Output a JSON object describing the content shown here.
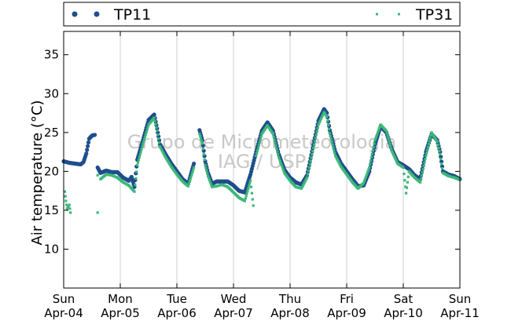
{
  "watermark": [
    "Grupo de Micrometeorologia",
    "IAG / USP"
  ],
  "chart_data": {
    "type": "scatter",
    "ylabel": "Air temperature (°C)",
    "xlabel": "",
    "ylim": [
      5,
      38
    ],
    "yticks": [
      10,
      15,
      20,
      25,
      30,
      35
    ],
    "xlim": [
      0,
      7
    ],
    "xticks": [
      {
        "x": 0,
        "day": "Sun",
        "date": "Apr-04"
      },
      {
        "x": 1,
        "day": "Mon",
        "date": "Apr-05"
      },
      {
        "x": 2,
        "day": "Tue",
        "date": "Apr-06"
      },
      {
        "x": 3,
        "day": "Wed",
        "date": "Apr-07"
      },
      {
        "x": 4,
        "day": "Thu",
        "date": "Apr-08"
      },
      {
        "x": 5,
        "day": "Fri",
        "date": "Apr-09"
      },
      {
        "x": 6,
        "day": "Sat",
        "date": "Apr-10"
      },
      {
        "x": 7,
        "day": "Sun",
        "date": "Apr-11"
      }
    ],
    "grid": "vertical",
    "legend_placement": "top, outside plot",
    "series": [
      {
        "name": "TP11",
        "color": "#1f4e8c",
        "marker": "circle",
        "points": [
          [
            0.0,
            21.3
          ],
          [
            0.1,
            21.1
          ],
          [
            0.2,
            21.0
          ],
          [
            0.3,
            20.9
          ],
          [
            0.35,
            21.2
          ],
          [
            0.4,
            22.3
          ],
          [
            0.45,
            24.2
          ],
          [
            0.5,
            24.6
          ],
          [
            0.55,
            24.7
          ],
          [
            0.6,
            20.5
          ],
          [
            0.65,
            19.8
          ],
          [
            0.75,
            20.1
          ],
          [
            0.85,
            19.9
          ],
          [
            0.95,
            19.9
          ],
          [
            1.05,
            19.2
          ],
          [
            1.15,
            18.8
          ],
          [
            1.2,
            19.3
          ],
          [
            1.25,
            18.0
          ],
          [
            1.3,
            21.5
          ],
          [
            1.4,
            24.0
          ],
          [
            1.5,
            26.6
          ],
          [
            1.6,
            27.3
          ],
          [
            1.65,
            25.5
          ],
          [
            1.7,
            23.5
          ],
          [
            1.8,
            22.2
          ],
          [
            1.9,
            21.0
          ],
          [
            2.0,
            20.0
          ],
          [
            2.1,
            19.0
          ],
          [
            2.2,
            18.4
          ],
          [
            2.3,
            21.0
          ],
          [
            2.4,
            25.3
          ],
          [
            2.45,
            24.0
          ],
          [
            2.5,
            21.3
          ],
          [
            2.55,
            19.8
          ],
          [
            2.62,
            18.4
          ],
          [
            2.7,
            18.7
          ],
          [
            2.8,
            18.7
          ],
          [
            2.9,
            18.7
          ],
          [
            3.0,
            18.2
          ],
          [
            3.1,
            17.5
          ],
          [
            3.2,
            17.3
          ],
          [
            3.3,
            19.6
          ],
          [
            3.4,
            22.5
          ],
          [
            3.5,
            25.2
          ],
          [
            3.6,
            26.3
          ],
          [
            3.7,
            25.2
          ],
          [
            3.8,
            22.2
          ],
          [
            3.9,
            20.2
          ],
          [
            4.0,
            19.2
          ],
          [
            4.1,
            18.6
          ],
          [
            4.2,
            18.3
          ],
          [
            4.3,
            19.5
          ],
          [
            4.4,
            23.0
          ],
          [
            4.5,
            26.5
          ],
          [
            4.6,
            28.0
          ],
          [
            4.65,
            27.5
          ],
          [
            4.7,
            25.3
          ],
          [
            4.8,
            22.5
          ],
          [
            4.9,
            21.0
          ],
          [
            5.0,
            20.0
          ],
          [
            5.1,
            19.0
          ],
          [
            5.2,
            18.1
          ],
          [
            5.3,
            18.2
          ],
          [
            5.4,
            20.0
          ],
          [
            5.5,
            23.5
          ],
          [
            5.6,
            25.8
          ],
          [
            5.7,
            25.0
          ],
          [
            5.8,
            22.8
          ],
          [
            5.9,
            21.2
          ],
          [
            6.0,
            20.8
          ],
          [
            6.1,
            20.3
          ],
          [
            6.2,
            19.5
          ],
          [
            6.3,
            19.0
          ],
          [
            6.4,
            22.5
          ],
          [
            6.5,
            24.8
          ],
          [
            6.6,
            24.0
          ],
          [
            6.65,
            22.5
          ],
          [
            6.7,
            20.0
          ],
          [
            6.8,
            19.6
          ],
          [
            6.9,
            19.4
          ],
          [
            7.0,
            19.0
          ]
        ]
      },
      {
        "name": "TP31",
        "color": "#3cb878",
        "marker": "square",
        "points": [
          [
            0.02,
            17.4
          ],
          [
            0.04,
            16.2
          ],
          [
            0.06,
            15.2
          ],
          [
            0.1,
            15.7
          ],
          [
            0.12,
            14.7
          ],
          [
            0.6,
            19.5
          ],
          [
            0.65,
            19.0
          ],
          [
            0.75,
            19.6
          ],
          [
            0.85,
            19.5
          ],
          [
            0.95,
            19.2
          ],
          [
            1.05,
            18.6
          ],
          [
            1.15,
            18.2
          ],
          [
            1.25,
            17.4
          ],
          [
            1.3,
            20.8
          ],
          [
            1.4,
            23.5
          ],
          [
            1.5,
            26.0
          ],
          [
            1.6,
            26.9
          ],
          [
            1.65,
            25.2
          ],
          [
            1.7,
            23.2
          ],
          [
            1.8,
            21.8
          ],
          [
            1.9,
            20.6
          ],
          [
            2.0,
            19.6
          ],
          [
            2.1,
            18.7
          ],
          [
            2.2,
            18.1
          ],
          [
            2.3,
            20.5
          ],
          [
            2.4,
            24.8
          ],
          [
            2.45,
            23.6
          ],
          [
            2.5,
            20.8
          ],
          [
            2.55,
            19.4
          ],
          [
            2.62,
            18.0
          ],
          [
            0.6,
            14.7
          ],
          [
            3.35,
            15.6
          ],
          [
            2.7,
            18.1
          ],
          [
            2.8,
            18.3
          ],
          [
            2.9,
            18.0
          ],
          [
            3.0,
            17.3
          ],
          [
            3.1,
            16.6
          ],
          [
            3.2,
            16.2
          ],
          [
            3.3,
            18.8
          ],
          [
            3.4,
            22.0
          ],
          [
            3.5,
            24.8
          ],
          [
            3.6,
            25.9
          ],
          [
            3.7,
            24.8
          ],
          [
            3.8,
            21.8
          ],
          [
            3.9,
            19.8
          ],
          [
            4.0,
            18.8
          ],
          [
            4.1,
            18.0
          ],
          [
            4.2,
            17.8
          ],
          [
            4.3,
            19.2
          ],
          [
            4.4,
            22.6
          ],
          [
            4.5,
            26.0
          ],
          [
            4.6,
            27.6
          ],
          [
            4.65,
            27.0
          ],
          [
            4.7,
            24.9
          ],
          [
            4.8,
            22.0
          ],
          [
            4.9,
            20.6
          ],
          [
            5.0,
            19.6
          ],
          [
            5.1,
            18.6
          ],
          [
            5.2,
            17.8
          ],
          [
            5.3,
            18.5
          ],
          [
            5.4,
            20.5
          ],
          [
            5.5,
            24.0
          ],
          [
            5.6,
            26.0
          ],
          [
            5.7,
            25.2
          ],
          [
            5.8,
            22.6
          ],
          [
            5.9,
            21.0
          ],
          [
            6.0,
            20.5
          ],
          [
            6.05,
            17.2
          ],
          [
            6.1,
            20.0
          ],
          [
            6.2,
            19.2
          ],
          [
            6.3,
            18.6
          ],
          [
            6.4,
            22.0
          ],
          [
            6.5,
            25.0
          ],
          [
            6.6,
            23.8
          ],
          [
            6.65,
            22.2
          ],
          [
            6.7,
            19.8
          ],
          [
            6.8,
            19.4
          ],
          [
            6.9,
            19.2
          ],
          [
            7.0,
            18.9
          ]
        ]
      }
    ]
  }
}
